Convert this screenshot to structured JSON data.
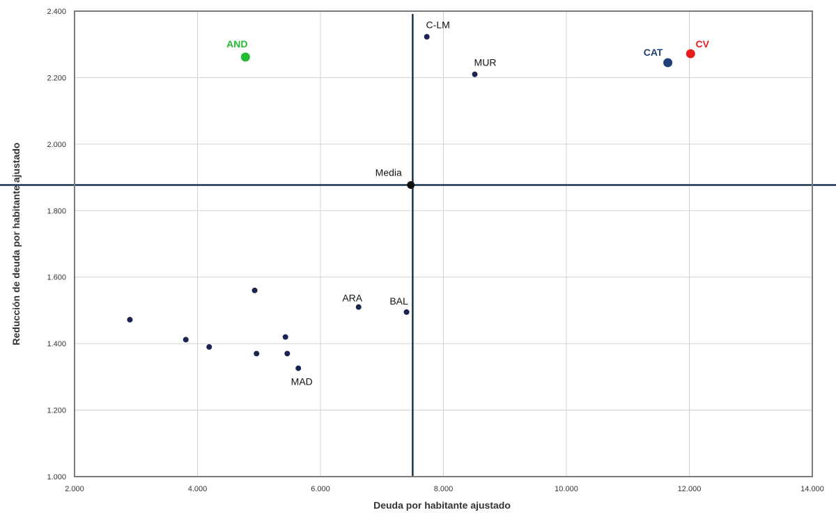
{
  "chart_data": {
    "type": "scatter",
    "xlabel": "Deuda por habitante ajustado",
    "ylabel": "Reducción de deuda por habitante ajustado",
    "xlim": [
      2000,
      14000
    ],
    "ylim": [
      1000,
      2400
    ],
    "x_ticks": [
      2000,
      4000,
      6000,
      8000,
      10000,
      12000,
      14000
    ],
    "y_ticks": [
      1000,
      1200,
      1400,
      1600,
      1800,
      2000,
      2200,
      2400
    ],
    "x_tick_labels": [
      "2.000",
      "4.000",
      "6.000",
      "8.000",
      "10.000",
      "12.000",
      "14.000"
    ],
    "y_tick_labels": [
      "1.000",
      "1.200",
      "1.400",
      "1.600",
      "1.800",
      "2.000",
      "2.200",
      "2.400"
    ],
    "grid": true,
    "reference_lines": {
      "x": 7500,
      "y": 1877
    },
    "points": [
      {
        "x": 4780,
        "y": 2262,
        "label": "AND",
        "color": "#22bb33",
        "size": "large",
        "label_style": "bold"
      },
      {
        "x": 7730,
        "y": 2323,
        "label": "C-LM",
        "color": "#1b2350",
        "size": "small",
        "label_style": "normal"
      },
      {
        "x": 8510,
        "y": 2210,
        "label": "MUR",
        "color": "#1b2350",
        "size": "small",
        "label_style": "normal"
      },
      {
        "x": 11650,
        "y": 2245,
        "label": "CAT",
        "color": "#1f3f7a",
        "size": "large",
        "label_style": "bold"
      },
      {
        "x": 12020,
        "y": 2272,
        "label": "CV",
        "color": "#e81c1c",
        "size": "large",
        "label_style": "bold"
      },
      {
        "x": 7470,
        "y": 1877,
        "label": "Media",
        "color": "#111111",
        "size": "medium",
        "label_style": "normal"
      },
      {
        "x": 6620,
        "y": 1510,
        "label": "ARA",
        "color": "#1b2350",
        "size": "small",
        "label_style": "normal"
      },
      {
        "x": 7400,
        "y": 1495,
        "label": "BAL",
        "color": "#1b2350",
        "size": "small",
        "label_style": "normal"
      },
      {
        "x": 5640,
        "y": 1326,
        "label": "MAD",
        "color": "#1b2350",
        "size": "small",
        "label_style": "normal"
      },
      {
        "x": 2900,
        "y": 1472,
        "label": "",
        "color": "#1b2350",
        "size": "small",
        "label_style": "normal"
      },
      {
        "x": 3810,
        "y": 1412,
        "label": "",
        "color": "#1b2350",
        "size": "small",
        "label_style": "normal"
      },
      {
        "x": 4190,
        "y": 1390,
        "label": "",
        "color": "#1b2350",
        "size": "small",
        "label_style": "normal"
      },
      {
        "x": 4930,
        "y": 1560,
        "label": "",
        "color": "#1b2350",
        "size": "small",
        "label_style": "normal"
      },
      {
        "x": 4960,
        "y": 1370,
        "label": "",
        "color": "#1b2350",
        "size": "small",
        "label_style": "normal"
      },
      {
        "x": 5430,
        "y": 1420,
        "label": "",
        "color": "#1b2350",
        "size": "small",
        "label_style": "normal"
      },
      {
        "x": 5460,
        "y": 1370,
        "label": "",
        "color": "#1b2350",
        "size": "small",
        "label_style": "normal"
      }
    ],
    "colors": {
      "grid": "#d0d0d0",
      "frame": "#7a7a7a",
      "reference_line": "#163452",
      "default_point": "#1b2350"
    }
  }
}
